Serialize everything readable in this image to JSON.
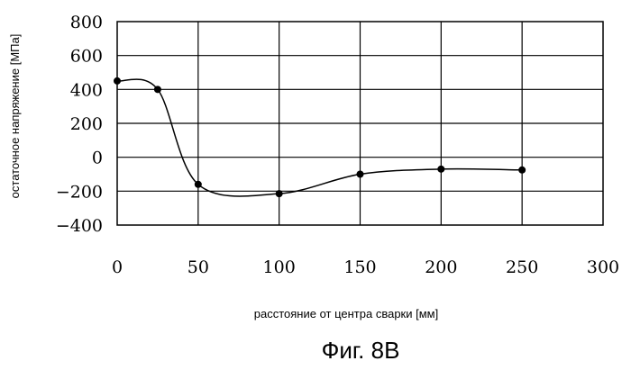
{
  "chart_data": {
    "type": "line",
    "title": "",
    "caption": "Фиг. 8B",
    "xlabel": "расстояние от центра сварки [мм]",
    "ylabel": "остаточное напряжение [МПа]",
    "xlim": [
      0,
      300
    ],
    "ylim": [
      -400,
      800
    ],
    "x_ticks": [
      "0",
      "50",
      "100",
      "150",
      "200",
      "250",
      "300"
    ],
    "y_ticks": [
      "800",
      "600",
      "400",
      "200",
      "0",
      "−200",
      "−400"
    ],
    "grid": true,
    "legend": "none",
    "series": [
      {
        "x": [
          0,
          25,
          50,
          100,
          150,
          200,
          250
        ],
        "y": [
          450,
          400,
          -160,
          -215,
          -100,
          -70,
          -75
        ]
      }
    ]
  }
}
